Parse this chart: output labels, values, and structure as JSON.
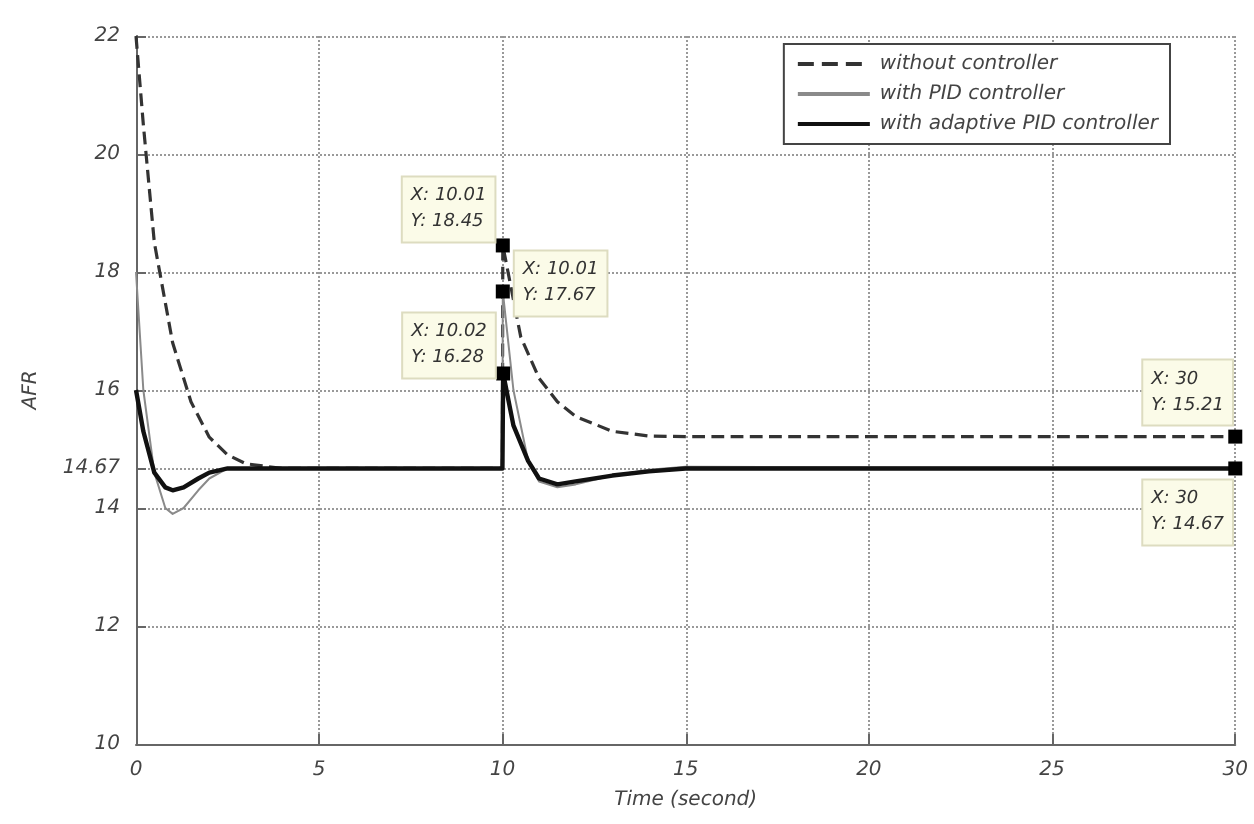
{
  "chart_data": {
    "type": "line",
    "xlabel": "Time (second)",
    "ylabel": "AFR",
    "xlim": [
      0,
      30
    ],
    "xticks": [
      0,
      5,
      10,
      15,
      20,
      25,
      30
    ],
    "ylim": [
      10,
      22
    ],
    "yticks": [
      10,
      12,
      14,
      14.67,
      16,
      18,
      20,
      22
    ],
    "grid": true,
    "legend": "top right",
    "marker": "none",
    "series": [
      {
        "name": "without controller",
        "color": "#333333",
        "line_style": "dashed",
        "x": [
          0,
          0.2,
          0.5,
          1,
          1.5,
          2,
          2.5,
          3,
          4,
          10,
          10.01,
          10.5,
          11,
          11.5,
          12,
          13,
          14,
          15,
          30
        ],
        "values": [
          22,
          20.5,
          18.5,
          16.8,
          15.8,
          15.2,
          14.9,
          14.75,
          14.67,
          14.67,
          18.45,
          16.9,
          16.2,
          15.8,
          15.55,
          15.3,
          15.22,
          15.21,
          15.21
        ]
      },
      {
        "name": "with PID controller",
        "color": "#8a8a8a",
        "line_style": "solid",
        "x": [
          0,
          0.2,
          0.5,
          0.8,
          1,
          1.3,
          1.7,
          2,
          2.5,
          3,
          10,
          10.01,
          10.3,
          10.7,
          11,
          11.5,
          12,
          13,
          14,
          15,
          30
        ],
        "values": [
          18,
          16,
          14.6,
          14,
          13.9,
          14.0,
          14.3,
          14.5,
          14.67,
          14.67,
          14.67,
          17.67,
          16.0,
          14.8,
          14.45,
          14.35,
          14.4,
          14.55,
          14.65,
          14.7,
          14.67
        ]
      },
      {
        "name": "with adaptive PID controller",
        "color": "#111111",
        "line_style": "solid",
        "x": [
          0,
          0.2,
          0.5,
          0.8,
          1,
          1.3,
          1.7,
          2,
          2.5,
          3,
          10,
          10.02,
          10.3,
          10.7,
          11,
          11.5,
          12,
          13,
          14,
          15,
          30
        ],
        "values": [
          16,
          15.3,
          14.6,
          14.35,
          14.3,
          14.35,
          14.5,
          14.6,
          14.67,
          14.67,
          14.67,
          16.28,
          15.4,
          14.8,
          14.5,
          14.4,
          14.45,
          14.55,
          14.62,
          14.67,
          14.67
        ]
      }
    ],
    "annotations": [
      {
        "text": "X: 10.01\nY: 18.45",
        "x": 10.01,
        "y": 18.45
      },
      {
        "text": "X: 10.01\nY: 17.67",
        "x": 10.01,
        "y": 17.67
      },
      {
        "text": "X: 10.02\nY: 16.28",
        "x": 10.02,
        "y": 16.28
      },
      {
        "text": "X: 30\nY: 15.21",
        "x": 30,
        "y": 15.21
      },
      {
        "text": "X: 30\nY: 14.67",
        "x": 30,
        "y": 14.67
      }
    ]
  }
}
